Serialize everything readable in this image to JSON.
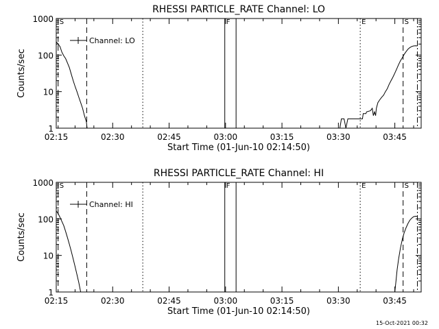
{
  "chart_data": [
    {
      "type": "line",
      "title": "RHESSI PARTICLE_RATE Channel: LO",
      "xlabel": "Start Time (01-Jun-10 02:14:50)",
      "ylabel": "Counts/sec",
      "y_scale": "log",
      "ylim": [
        1,
        1000
      ],
      "xlim_minutes_after_0215": [
        0,
        97
      ],
      "x_tick_labels": [
        "02:15",
        "02:30",
        "02:45",
        "03:00",
        "03:15",
        "03:30",
        "03:45"
      ],
      "y_tick_labels": [
        "1",
        "10",
        "100",
        "1000"
      ],
      "legend": {
        "label": "Channel: LO",
        "position": "top-left"
      },
      "markers": [
        {
          "label": "S",
          "t": 0.5,
          "style": "dashed"
        },
        {
          "label": "",
          "t": 8.1,
          "style": "dashed"
        },
        {
          "label": "",
          "t": 23.0,
          "style": "dotted"
        },
        {
          "label": "F",
          "t": 44.8,
          "style": "solid"
        },
        {
          "label": "",
          "t": 47.8,
          "style": "solid"
        },
        {
          "label": "E",
          "t": 80.8,
          "style": "dotted"
        },
        {
          "label": "S",
          "t": 92.2,
          "style": "dashed"
        },
        {
          "label": "",
          "t": 96.0,
          "style": "dashdot"
        }
      ],
      "series": [
        {
          "name": "Channel: LO",
          "segments": [
            [
              [
                0,
                230
              ],
              [
                0.5,
                200
              ],
              [
                1,
                170
              ],
              [
                1.5,
                120
              ],
              [
                2,
                95
              ],
              [
                2.5,
                80
              ],
              [
                3,
                60
              ],
              [
                3.5,
                45
              ],
              [
                4,
                30
              ],
              [
                4.5,
                20
              ],
              [
                5,
                14
              ],
              [
                5.5,
                10
              ],
              [
                6,
                7
              ],
              [
                6.5,
                5
              ],
              [
                7,
                3.5
              ],
              [
                7.5,
                2.2
              ],
              [
                8,
                1.5
              ],
              [
                8.2,
                1
              ]
            ],
            [
              [
                75.4,
                1
              ],
              [
                75.8,
                1.8
              ],
              [
                76.5,
                1.8
              ],
              [
                77.0,
                1
              ],
              [
                77.5,
                1.8
              ],
              [
                78.5,
                1.8
              ],
              [
                79.5,
                1.8
              ],
              [
                80.5,
                1.8
              ],
              [
                81.4,
                1.8
              ],
              [
                81.6,
                2.5
              ],
              [
                82.3,
                2.5
              ],
              [
                82.5,
                2.8
              ],
              [
                83.5,
                3
              ],
              [
                84,
                3.5
              ],
              [
                84.3,
                2.2
              ],
              [
                84.6,
                2.8
              ],
              [
                84.9,
                2.2
              ],
              [
                85.1,
                3.5
              ],
              [
                85.5,
                5
              ],
              [
                86,
                6
              ],
              [
                86.5,
                7
              ],
              [
                87,
                8
              ],
              [
                87.5,
                10
              ],
              [
                88,
                12
              ],
              [
                88.5,
                16
              ],
              [
                89,
                20
              ],
              [
                89.5,
                25
              ],
              [
                90,
                32
              ],
              [
                90.5,
                42
              ],
              [
                91,
                55
              ],
              [
                91.5,
                70
              ],
              [
                92,
                85
              ],
              [
                92.5,
                105
              ],
              [
                93,
                125
              ],
              [
                93.5,
                145
              ],
              [
                94,
                160
              ],
              [
                94.5,
                172
              ],
              [
                95,
                178
              ],
              [
                95.5,
                180
              ],
              [
                96,
                178
              ]
            ]
          ]
        }
      ]
    },
    {
      "type": "line",
      "title": "RHESSI PARTICLE_RATE Channel: HI",
      "xlabel": "Start Time (01-Jun-10 02:14:50)",
      "ylabel": "Counts/sec",
      "y_scale": "log",
      "ylim": [
        1,
        1000
      ],
      "xlim_minutes_after_0215": [
        0,
        97
      ],
      "x_tick_labels": [
        "02:15",
        "02:30",
        "02:45",
        "03:00",
        "03:15",
        "03:30",
        "03:45"
      ],
      "y_tick_labels": [
        "1",
        "10",
        "100",
        "1000"
      ],
      "legend": {
        "label": "Channel: HI",
        "position": "top-left"
      },
      "markers": [
        {
          "label": "S",
          "t": 0.5,
          "style": "dashed"
        },
        {
          "label": "",
          "t": 8.1,
          "style": "dashed"
        },
        {
          "label": "",
          "t": 23.0,
          "style": "dotted"
        },
        {
          "label": "F",
          "t": 44.8,
          "style": "solid"
        },
        {
          "label": "",
          "t": 47.8,
          "style": "solid"
        },
        {
          "label": "E",
          "t": 80.8,
          "style": "dotted"
        },
        {
          "label": "S",
          "t": 92.2,
          "style": "dashed"
        },
        {
          "label": "",
          "t": 96.0,
          "style": "dashdot"
        }
      ],
      "series": [
        {
          "name": "Channel: HI",
          "segments": [
            [
              [
                0,
                165
              ],
              [
                0.5,
                140
              ],
              [
                1,
                110
              ],
              [
                1.5,
                85
              ],
              [
                2,
                65
              ],
              [
                2.5,
                45
              ],
              [
                3,
                30
              ],
              [
                3.5,
                20
              ],
              [
                4,
                13
              ],
              [
                4.5,
                8
              ],
              [
                5,
                5
              ],
              [
                5.5,
                3
              ],
              [
                6,
                1.8
              ],
              [
                6.5,
                1
              ]
            ],
            [
              [
                90.0,
                1
              ],
              [
                90.3,
                2
              ],
              [
                90.6,
                4
              ],
              [
                91,
                8
              ],
              [
                91.5,
                16
              ],
              [
                92,
                28
              ],
              [
                92.5,
                42
              ],
              [
                93,
                58
              ],
              [
                93.5,
                75
              ],
              [
                94,
                92
              ],
              [
                94.5,
                105
              ],
              [
                95,
                115
              ],
              [
                95.5,
                118
              ],
              [
                96,
                117
              ]
            ]
          ]
        }
      ]
    }
  ],
  "timestamp": "15-Oct-2021 00:32"
}
